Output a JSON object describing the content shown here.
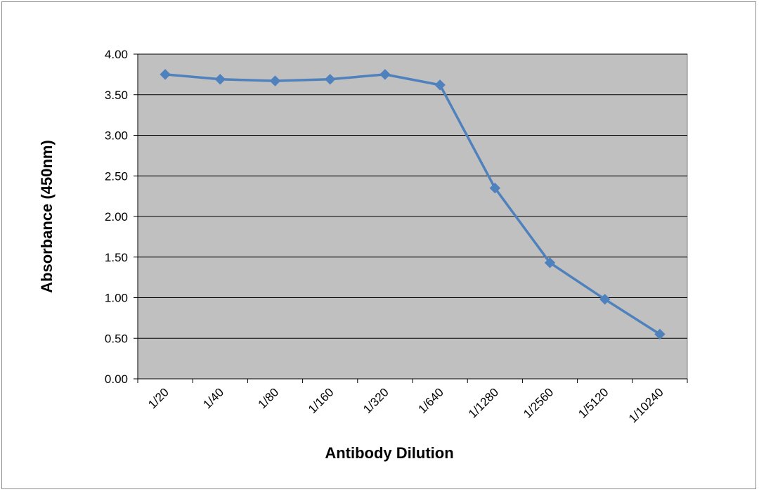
{
  "chart_data": {
    "type": "line",
    "title": "",
    "xlabel": "Antibody Dilution",
    "ylabel": "Absorbance (450nm)",
    "categories": [
      "1/20",
      "1/40",
      "1/80",
      "1/160",
      "1/320",
      "1/640",
      "1/1280",
      "1/2560",
      "1/5120",
      "1/10240"
    ],
    "series": [
      {
        "values": [
          3.75,
          3.69,
          3.67,
          3.69,
          3.75,
          3.62,
          2.35,
          1.43,
          0.98,
          0.55
        ]
      }
    ],
    "ylim": [
      0,
      4
    ],
    "yticks": [
      "0.00",
      "0.50",
      "1.00",
      "1.50",
      "2.00",
      "2.50",
      "3.00",
      "3.50",
      "4.00"
    ],
    "grid": true,
    "legend": "none",
    "colors": {
      "series": "#4F81BD",
      "plot_background": "#C0C0C0",
      "gridline": "#000000"
    }
  }
}
